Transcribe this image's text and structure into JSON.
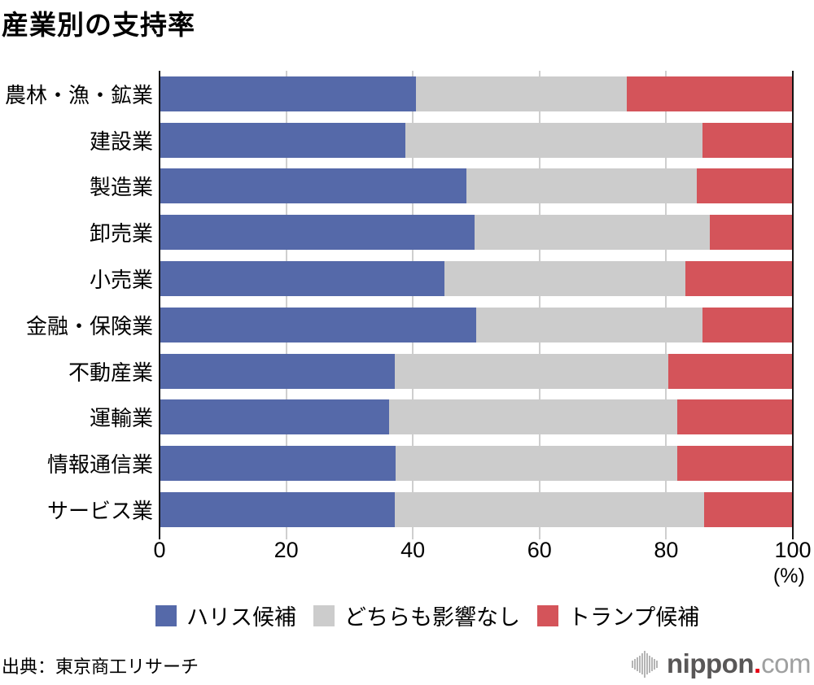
{
  "title": "産業別の支持率",
  "axis": {
    "ticks": [
      "0",
      "20",
      "40",
      "60",
      "80",
      "100"
    ],
    "unit": "(%)"
  },
  "chart_data": {
    "type": "bar",
    "orientation": "horizontal",
    "stacked": true,
    "title": "産業別の支持率",
    "xlabel": "(%)",
    "xlim": [
      0,
      100
    ],
    "grid": true,
    "legend_position": "bottom",
    "categories": [
      "農林・漁・鉱業",
      "建設業",
      "製造業",
      "卸売業",
      "小売業",
      "金融・保険業",
      "不動産業",
      "運輸業",
      "情報通信業",
      "サービス業"
    ],
    "series": [
      {
        "name": "ハリス候補",
        "color": "#5569a9",
        "values": [
          40.5,
          38.8,
          48.5,
          49.7,
          45.0,
          50.0,
          37.2,
          36.2,
          37.3,
          37.2
        ]
      },
      {
        "name": "どちらも影響なし",
        "color": "#cccccc",
        "values": [
          33.3,
          46.9,
          36.3,
          37.2,
          38.0,
          35.7,
          43.1,
          45.5,
          44.5,
          48.8
        ]
      },
      {
        "name": "トランプ候補",
        "color": "#d4545a",
        "values": [
          26.2,
          14.3,
          15.2,
          13.1,
          17.0,
          14.3,
          19.7,
          18.3,
          18.2,
          14.0
        ]
      }
    ]
  },
  "legend": {
    "items": [
      {
        "label": "ハリス候補",
        "color": "#5569a9"
      },
      {
        "label": "どちらも影響なし",
        "color": "#cccccc"
      },
      {
        "label": "トランプ候補",
        "color": "#d4545a"
      }
    ]
  },
  "footer": {
    "source": "出典：東京商工リサーチ",
    "logo": {
      "icon": "soundwave-bars-icon",
      "main": "nippon",
      "dot": ".",
      "suffix": "com"
    }
  },
  "colors": {
    "harris": "#5569a9",
    "neither": "#cccccc",
    "trump": "#d4545a",
    "gridline": "#cfcfcf",
    "axis": "#141414"
  }
}
